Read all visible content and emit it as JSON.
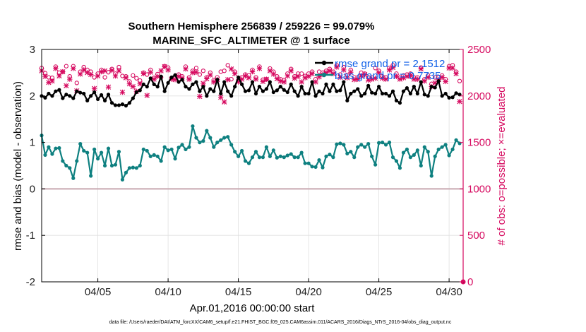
{
  "chart_data": {
    "type": "line",
    "title": "Southern Hemisphere 256839 / 259226 = 99.079%",
    "subtitle": "MARINE_SFC_ALTIMETER @ 1 surface",
    "xlabel": "Apr.01,2016 00:00:00 start",
    "ylabel": "rmse and bias (model - observation)",
    "y2label": "# of obs: o=possible; ×=evaluated",
    "x_ticks": [
      "04/05",
      "04/10",
      "04/15",
      "04/20",
      "04/25",
      "04/30"
    ],
    "x_tick_days": [
      5,
      10,
      15,
      20,
      25,
      30
    ],
    "y_ticks": [
      "3",
      "2",
      "1",
      "0",
      "-1",
      "-2"
    ],
    "y2_ticks": [
      "2500",
      "2000",
      "1500",
      "1000",
      "500",
      "0"
    ],
    "xlim": [
      1,
      31
    ],
    "ylim": [
      -2,
      3
    ],
    "y2lim": [
      0,
      2500
    ],
    "grid": true,
    "legend_position": "top-right",
    "x_days": [
      1.0,
      1.25,
      1.5,
      1.75,
      2.0,
      2.25,
      2.5,
      2.75,
      3.0,
      3.25,
      3.5,
      3.75,
      4.0,
      4.25,
      4.5,
      4.75,
      5.0,
      5.25,
      5.5,
      5.75,
      6.0,
      6.25,
      6.5,
      6.75,
      7.0,
      7.25,
      7.5,
      7.75,
      8.0,
      8.25,
      8.5,
      8.75,
      9.0,
      9.25,
      9.5,
      9.75,
      10.0,
      10.25,
      10.5,
      10.75,
      11.0,
      11.25,
      11.5,
      11.75,
      12.0,
      12.25,
      12.5,
      12.75,
      13.0,
      13.25,
      13.5,
      13.75,
      14.0,
      14.25,
      14.5,
      14.75,
      15.0,
      15.25,
      15.5,
      15.75,
      16.0,
      16.25,
      16.5,
      16.75,
      17.0,
      17.25,
      17.5,
      17.75,
      18.0,
      18.25,
      18.5,
      18.75,
      19.0,
      19.25,
      19.5,
      19.75,
      20.0,
      20.25,
      20.5,
      20.75,
      21.0,
      21.25,
      21.5,
      21.75,
      22.0,
      22.25,
      22.5,
      22.75,
      23.0,
      23.25,
      23.5,
      23.75,
      24.0,
      24.25,
      24.5,
      24.75,
      25.0,
      25.25,
      25.5,
      25.75,
      26.0,
      26.25,
      26.5,
      26.75,
      27.0,
      27.25,
      27.5,
      27.75,
      28.0,
      28.25,
      28.5,
      28.75,
      29.0,
      29.25,
      29.5,
      29.75,
      30.0,
      30.25,
      30.5,
      30.75
    ],
    "series": [
      {
        "name": "rmse grand pr = 2.1512",
        "color": "#000000",
        "axis": "left",
        "values": [
          2.0,
          1.96,
          2.05,
          2.0,
          2.1,
          2.13,
          1.95,
          2.03,
          2.0,
          1.95,
          2.1,
          2.07,
          2.05,
          1.9,
          2.0,
          2.08,
          1.93,
          2.02,
          1.9,
          2.03,
          1.85,
          1.8,
          1.8,
          1.82,
          1.79,
          1.85,
          1.95,
          2.08,
          2.12,
          2.25,
          2.2,
          2.38,
          2.25,
          2.2,
          2.42,
          2.1,
          2.28,
          2.4,
          2.45,
          2.3,
          2.35,
          2.2,
          2.15,
          2.25,
          2.3,
          2.1,
          2.2,
          2.0,
          2.15,
          2.1,
          2.35,
          2.05,
          2.3,
          2.1,
          2.0,
          2.2,
          2.4,
          2.25,
          2.1,
          2.12,
          2.3,
          2.05,
          2.2,
          2.1,
          2.15,
          2.3,
          2.08,
          2.12,
          2.2,
          2.13,
          2.08,
          2.25,
          2.1,
          2.0,
          2.2,
          2.05,
          2.05,
          2.3,
          2.0,
          2.1,
          2.05,
          2.25,
          2.1,
          2.25,
          2.1,
          2.12,
          2.3,
          1.9,
          2.05,
          2.1,
          2.15,
          2.0,
          2.05,
          2.22,
          2.07,
          2.05,
          2.2,
          2.05,
          2.05,
          2.0,
          2.1,
          1.9,
          1.85,
          2.1,
          2.17,
          2.05,
          2.2,
          2.05,
          2.3,
          2.03,
          2.0,
          2.2,
          2.18,
          2.32,
          2.0,
          2.05,
          1.96,
          1.97,
          2.06,
          2.03
        ]
      },
      {
        "name": "bias grand pr = 0.7735",
        "color": "#0e8080",
        "axis": "left",
        "values": [
          1.15,
          0.73,
          0.9,
          0.75,
          0.87,
          0.88,
          0.6,
          0.5,
          0.45,
          0.23,
          0.6,
          0.97,
          0.82,
          0.78,
          0.28,
          0.85,
          0.65,
          0.78,
          0.5,
          0.87,
          0.5,
          0.52,
          0.8,
          0.2,
          0.35,
          0.45,
          0.46,
          0.45,
          0.5,
          0.85,
          0.82,
          0.7,
          0.73,
          0.7,
          0.6,
          0.9,
          0.83,
          0.85,
          0.65,
          0.89,
          0.95,
          0.85,
          0.9,
          1.35,
          1.1,
          1.0,
          1.03,
          1.25,
          1.1,
          0.9,
          1.0,
          1.05,
          1.1,
          1.12,
          0.95,
          0.8,
          0.7,
          0.82,
          0.6,
          0.55,
          0.68,
          0.8,
          0.68,
          0.68,
          0.9,
          0.7,
          0.83,
          0.67,
          0.7,
          0.68,
          0.72,
          0.75,
          0.68,
          0.68,
          0.78,
          0.55,
          0.55,
          0.48,
          0.47,
          0.62,
          0.46,
          0.7,
          0.74,
          0.68,
          0.96,
          0.98,
          0.95,
          0.76,
          0.8,
          0.68,
          0.9,
          0.95,
          0.9,
          0.97,
          0.7,
          0.52,
          0.99,
          1.0,
          0.95,
          1.0,
          0.68,
          0.6,
          0.45,
          0.78,
          0.85,
          0.68,
          0.73,
          0.83,
          0.5,
          0.9,
          0.8,
          0.28,
          0.7,
          0.85,
          0.9,
          0.95,
          0.72,
          0.85,
          1.05,
          0.98
        ]
      },
      {
        "name": "possible",
        "color": "#d6095f",
        "axis": "right",
        "marker": "o",
        "values": [
          2300,
          2245,
          2200,
          2195,
          2315,
          2250,
          2260,
          2320,
          2210,
          2320,
          2140,
          2260,
          2310,
          2280,
          2260,
          2200,
          2240,
          2280,
          2200,
          2255,
          2290,
          2240,
          2310,
          2215,
          2210,
          2155,
          2220,
          2190,
          2165,
          2250,
          2230,
          2280,
          2195,
          2235,
          2200,
          2320,
          2305,
          2195,
          2200,
          2230,
          2210,
          2315,
          2200,
          2270,
          2300,
          2230,
          2270,
          2200,
          2250,
          2170,
          2200,
          2260,
          2270,
          2330,
          2180,
          2260,
          2170,
          2200,
          2230,
          2220,
          2280,
          2200,
          2315,
          2175,
          2180,
          2295,
          2260,
          2210,
          2180,
          2170,
          2240,
          2290,
          2210,
          2240,
          2240,
          2215,
          2240,
          2260,
          2180,
          2260,
          2250,
          2270,
          2290,
          2260,
          2330,
          2230,
          2310,
          2225,
          2280,
          2200,
          2200,
          2250,
          2240,
          2200,
          2200,
          2300,
          2270,
          2210,
          2200,
          2300,
          2330,
          2240,
          2200,
          2220,
          2230,
          2240,
          2200,
          2200,
          2305,
          2180,
          2220,
          2130,
          2200,
          2200,
          2220,
          2180,
          2320,
          2330,
          2260,
          2160
        ]
      },
      {
        "name": "evaluated",
        "color": "#d6095f",
        "axis": "right",
        "marker": "x",
        "values": [
          2270,
          2210,
          2145,
          2160,
          2295,
          2215,
          2260,
          2110,
          2180,
          2295,
          2055,
          2235,
          2280,
          2250,
          2230,
          2080,
          2215,
          2260,
          2270,
          2095,
          2275,
          2215,
          2270,
          2040,
          2195,
          2130,
          2100,
          2050,
          2130,
          2240,
          2005,
          2255,
          2180,
          2210,
          2270,
          2315,
          2280,
          2180,
          2175,
          2210,
          2190,
          2290,
          2180,
          2250,
          2255,
          1995,
          2135,
          2185,
          2225,
          2150,
          2175,
          1985,
          1935,
          2175,
          2290,
          2240,
          2150,
          2180,
          2215,
          2195,
          2260,
          2180,
          2295,
          2155,
          2180,
          2270,
          2235,
          2185,
          2160,
          2150,
          2215,
          2270,
          2190,
          2210,
          2150,
          2195,
          2210,
          2240,
          2150,
          2205,
          2230,
          2250,
          2270,
          2240,
          2310,
          2200,
          2280,
          2195,
          2255,
          2175,
          2180,
          2215,
          2230,
          2170,
          2180,
          2190,
          2250,
          2190,
          2180,
          2280,
          2305,
          2210,
          2180,
          2195,
          2210,
          2220,
          2180,
          2180,
          2290,
          2160,
          2200,
          2100,
          2140,
          2175,
          2200,
          2155,
          2300,
          2300,
          2240,
          1940
        ]
      }
    ],
    "zero_line": 0,
    "extra_points": [
      {
        "x": 31,
        "y2": 0,
        "marker": "o"
      }
    ]
  },
  "footer": "data file: /Users/raeder/DAI/ATM_forcXX/CAM6_setup/f.e21.FHIST_BGC.f09_025.CAM6assim.011/ACARS_2016/Diags_NTrS_2016-04/obs_diag_output.nc",
  "colors": {
    "axis": "#000000",
    "right_axis": "#d6095f",
    "legend_text": "#1060e8",
    "zero_line": "#c8a8b0",
    "grid": "#e0e0e0"
  }
}
